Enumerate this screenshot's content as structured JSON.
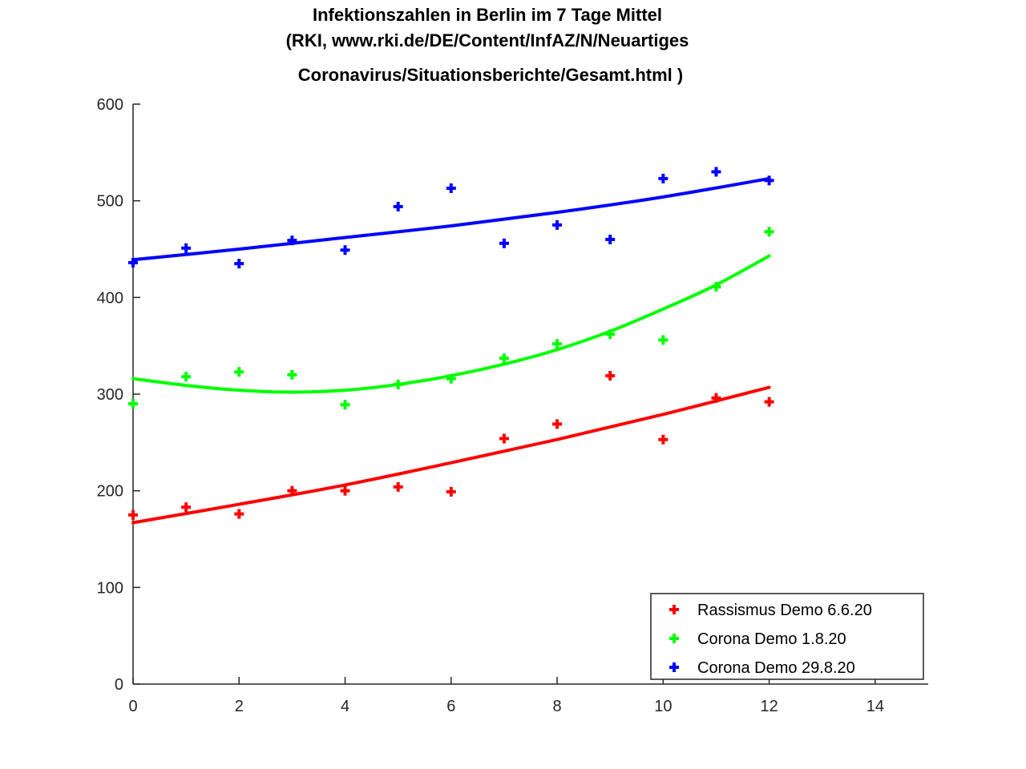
{
  "chart_data": {
    "type": "scatter",
    "title_lines": [
      "Infektionszahlen in Berlin im 7 Tage Mittel",
      "(RKI, www.rki.de/DE/Content/InfAZ/N/Neuartiges",
      "Coronavirus/Situationsberichte/Gesamt.html )"
    ],
    "xlabel": "",
    "ylabel": "",
    "xlim": [
      0,
      15
    ],
    "ylim": [
      0,
      600
    ],
    "xticks": [
      0,
      2,
      4,
      6,
      8,
      10,
      12,
      14
    ],
    "yticks": [
      0,
      100,
      200,
      300,
      400,
      500,
      600
    ],
    "grid": false,
    "legend_position": "bottom-right",
    "x": [
      0,
      1,
      2,
      3,
      4,
      5,
      6,
      7,
      8,
      9,
      10,
      11,
      12
    ],
    "series": [
      {
        "name": "Rassismus Demo 6.6.20",
        "color": "#ff0000",
        "marker": "plus",
        "values": [
          175,
          183,
          176,
          200,
          200,
          204,
          199,
          254,
          269,
          319,
          253,
          296,
          292
        ],
        "fit_curve": [
          [
            0,
            167
          ],
          [
            2,
            186
          ],
          [
            4,
            206
          ],
          [
            6,
            229
          ],
          [
            8,
            253
          ],
          [
            10,
            279
          ],
          [
            12,
            307
          ]
        ]
      },
      {
        "name": "Corona Demo 1.8.20",
        "color": "#00ff00",
        "marker": "plus",
        "values": [
          290,
          318,
          323,
          320,
          289,
          310,
          316,
          337,
          352,
          362,
          356,
          411,
          468
        ],
        "fit_curve": [
          [
            0,
            316
          ],
          [
            1,
            309
          ],
          [
            2,
            304
          ],
          [
            3,
            302
          ],
          [
            4,
            304
          ],
          [
            5,
            310
          ],
          [
            6,
            319
          ],
          [
            7,
            331
          ],
          [
            8,
            346
          ],
          [
            9,
            365
          ],
          [
            10,
            388
          ],
          [
            11,
            413
          ],
          [
            12,
            443
          ]
        ]
      },
      {
        "name": "Corona Demo 29.8.20",
        "color": "#0000ff",
        "marker": "plus",
        "values": [
          436,
          451,
          435,
          459,
          449,
          494,
          513,
          456,
          475,
          460,
          523,
          530,
          521
        ],
        "fit_curve": [
          [
            0,
            439
          ],
          [
            2,
            450
          ],
          [
            4,
            462
          ],
          [
            6,
            474
          ],
          [
            8,
            488
          ],
          [
            10,
            504
          ],
          [
            12,
            523
          ]
        ]
      }
    ]
  }
}
